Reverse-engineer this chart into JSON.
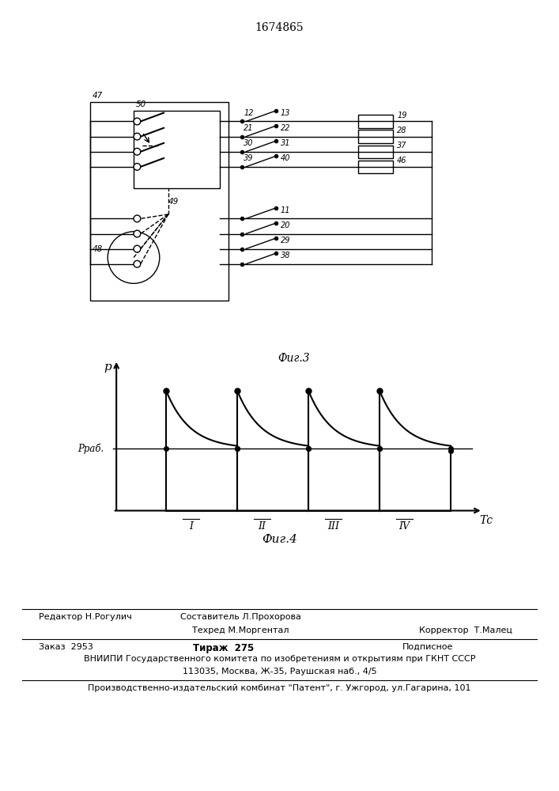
{
  "title": "1674865",
  "fig3_label": "Фиг.3",
  "fig4_label": "Фиг.4",
  "p_label": "p",
  "p_rab_label": "Pраб.",
  "tc_label": "Tс",
  "cycle_labels": [
    "I",
    "II",
    "III",
    "IV"
  ],
  "upper_left_labels": [
    "12",
    "21",
    "30",
    "39"
  ],
  "upper_mid_labels": [
    "13",
    "22",
    "31",
    "40"
  ],
  "upper_right_labels": [
    "19",
    "28",
    "37",
    "46"
  ],
  "lower_labels": [
    "11",
    "20",
    "29",
    "38"
  ],
  "label_47": "47",
  "label_50": "50",
  "label_48": "48",
  "label_49": "49",
  "footer_editor": "Редактор Н.Рогулич",
  "footer_sostavitel": "Составитель Л.Прохорова",
  "footer_tehred": "Техред М.Моргентал",
  "footer_korrektor": "Корректор  Т.Малец",
  "footer_zakaz": "Заказ  2953",
  "footer_tirazh": "Тираж  275",
  "footer_podpisnoe": "Подписное",
  "footer_vniiipi1": "ВНИИПИ Государственного комитета по изобретениям и открытиям при ГКНТ СССР",
  "footer_vniiipi2": "113035, Москва, Ж-35, Раушская наб., 4/5",
  "footer_patent": "Производственно-издательский комбинат \"Патент\", г. Ужгород, ул.Гагарина, 101"
}
